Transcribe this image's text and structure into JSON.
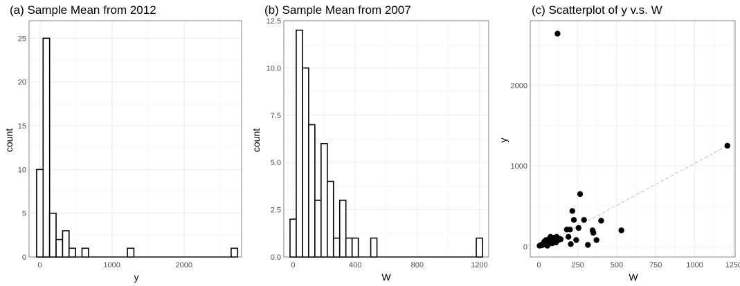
{
  "chart_data": [
    {
      "type": "bar",
      "title": "(a) Sample Mean from 2012",
      "xlabel": "y",
      "ylabel": "count",
      "xlim": [
        -150,
        2800
      ],
      "ylim": [
        0,
        27
      ],
      "xticks": [
        0,
        1000,
        2000
      ],
      "yticks": [
        0,
        5,
        10,
        15,
        20,
        25
      ],
      "grid": true,
      "bin_width": 90,
      "bins": [
        {
          "start": -45,
          "count": 10
        },
        {
          "start": 45,
          "count": 25
        },
        {
          "start": 135,
          "count": 5
        },
        {
          "start": 225,
          "count": 2
        },
        {
          "start": 315,
          "count": 3
        },
        {
          "start": 405,
          "count": 1
        },
        {
          "start": 495,
          "count": 0
        },
        {
          "start": 585,
          "count": 1
        },
        {
          "start": 1215,
          "count": 1
        },
        {
          "start": 2610,
          "count": 1
        }
      ]
    },
    {
      "type": "bar",
      "title": "(b) Sample Mean from 2007",
      "xlabel": "W",
      "ylabel": "count",
      "xlim": [
        -60,
        1260
      ],
      "ylim": [
        0,
        12.5
      ],
      "xticks": [
        0,
        400,
        800,
        1200
      ],
      "yticks": [
        0.0,
        2.5,
        5.0,
        7.5,
        10.0,
        12.5
      ],
      "ytick_labels": [
        "0.0",
        "2.5",
        "5.0",
        "7.5",
        "10.0",
        "12.5"
      ],
      "grid": true,
      "bin_width": 40,
      "bins": [
        {
          "start": -20,
          "count": 2
        },
        {
          "start": 20,
          "count": 12
        },
        {
          "start": 60,
          "count": 10
        },
        {
          "start": 100,
          "count": 7
        },
        {
          "start": 140,
          "count": 3
        },
        {
          "start": 180,
          "count": 6
        },
        {
          "start": 220,
          "count": 4
        },
        {
          "start": 260,
          "count": 1
        },
        {
          "start": 300,
          "count": 3
        },
        {
          "start": 340,
          "count": 1
        },
        {
          "start": 380,
          "count": 1
        },
        {
          "start": 420,
          "count": 0
        },
        {
          "start": 460,
          "count": 0
        },
        {
          "start": 500,
          "count": 1
        },
        {
          "start": 1180,
          "count": 1
        }
      ]
    },
    {
      "type": "scatter",
      "title": "(c) Scatterplot of y v.s. W",
      "xlabel": "W",
      "ylabel": "y",
      "xlim": [
        -55,
        1260
      ],
      "ylim": [
        -130,
        2800
      ],
      "xticks": [
        0,
        250,
        500,
        750,
        1000,
        1250
      ],
      "yticks": [
        0,
        1000,
        2000
      ],
      "grid": true,
      "fit_line": {
        "x": [
          0,
          1210
        ],
        "y": [
          -10,
          1250
        ]
      },
      "points": [
        [
          5,
          10
        ],
        [
          15,
          20
        ],
        [
          20,
          15
        ],
        [
          30,
          40
        ],
        [
          35,
          60
        ],
        [
          40,
          25
        ],
        [
          45,
          80
        ],
        [
          50,
          50
        ],
        [
          55,
          10
        ],
        [
          60,
          30
        ],
        [
          65,
          90
        ],
        [
          70,
          100
        ],
        [
          75,
          120
        ],
        [
          80,
          70
        ],
        [
          85,
          40
        ],
        [
          90,
          100
        ],
        [
          95,
          60
        ],
        [
          100,
          110
        ],
        [
          105,
          90
        ],
        [
          110,
          50
        ],
        [
          115,
          120
        ],
        [
          120,
          2640
        ],
        [
          125,
          80
        ],
        [
          130,
          95
        ],
        [
          140,
          90
        ],
        [
          180,
          210
        ],
        [
          190,
          120
        ],
        [
          200,
          210
        ],
        [
          205,
          30
        ],
        [
          215,
          440
        ],
        [
          225,
          330
        ],
        [
          240,
          80
        ],
        [
          255,
          230
        ],
        [
          265,
          650
        ],
        [
          290,
          330
        ],
        [
          315,
          20
        ],
        [
          345,
          200
        ],
        [
          350,
          170
        ],
        [
          370,
          80
        ],
        [
          400,
          320
        ],
        [
          530,
          200
        ],
        [
          1210,
          1250
        ]
      ]
    }
  ]
}
